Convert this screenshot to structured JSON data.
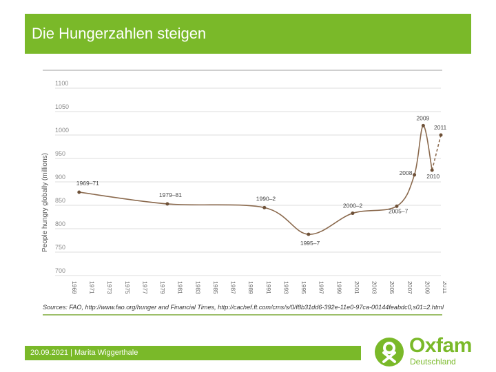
{
  "slide": {
    "title": "Die Hungerzahlen steigen",
    "footer": "20.09.2021 | Marita Wiggerthale"
  },
  "logo": {
    "name": "Oxfam",
    "subtitle": "Deutschland",
    "icon": "oxfam-logo-icon"
  },
  "colors": {
    "accent": "#7ab929",
    "line": "#8b6a4e",
    "grid": "#d9d9d9",
    "tick_text": "#888888"
  },
  "chart_data": {
    "type": "line",
    "ylabel": "People hungry globally (millions)",
    "xlabel": "",
    "ylim": [
      700,
      1100
    ],
    "yticks": [
      700,
      750,
      800,
      850,
      900,
      950,
      1000,
      1050,
      1100
    ],
    "xlim": [
      1969,
      2011
    ],
    "xticks": [
      "1969",
      "1971",
      "1973",
      "1975",
      "1977",
      "1979",
      "1981",
      "1983",
      "1985",
      "1987",
      "1989",
      "1991",
      "1993",
      "1995",
      "1997",
      "1999",
      "2001",
      "2003",
      "2005",
      "2007",
      "2009",
      "2011"
    ],
    "points": [
      {
        "label": "1969–71",
        "x": 1970,
        "y": 878
      },
      {
        "label": "1979–81",
        "x": 1980,
        "y": 853
      },
      {
        "label": "1990–2",
        "x": 1991,
        "y": 845
      },
      {
        "label": "1995–7",
        "x": 1996,
        "y": 788
      },
      {
        "label": "2000–2",
        "x": 2001,
        "y": 833
      },
      {
        "label": "2005–7",
        "x": 2006,
        "y": 848
      },
      {
        "label": "2008",
        "x": 2008,
        "y": 915
      },
      {
        "label": "2009",
        "x": 2009,
        "y": 1020
      },
      {
        "label": "2010",
        "x": 2010,
        "y": 925
      },
      {
        "label": "2011",
        "x": 2011,
        "y": 1000
      }
    ],
    "source": "Sources: FAO, http://www.fao.org/hunger and Financial Times, http://cachef.ft.com/cms/s/0/f8b31dd6-392e-11e0-97ca-00144feabdc0,s01=2.html"
  }
}
